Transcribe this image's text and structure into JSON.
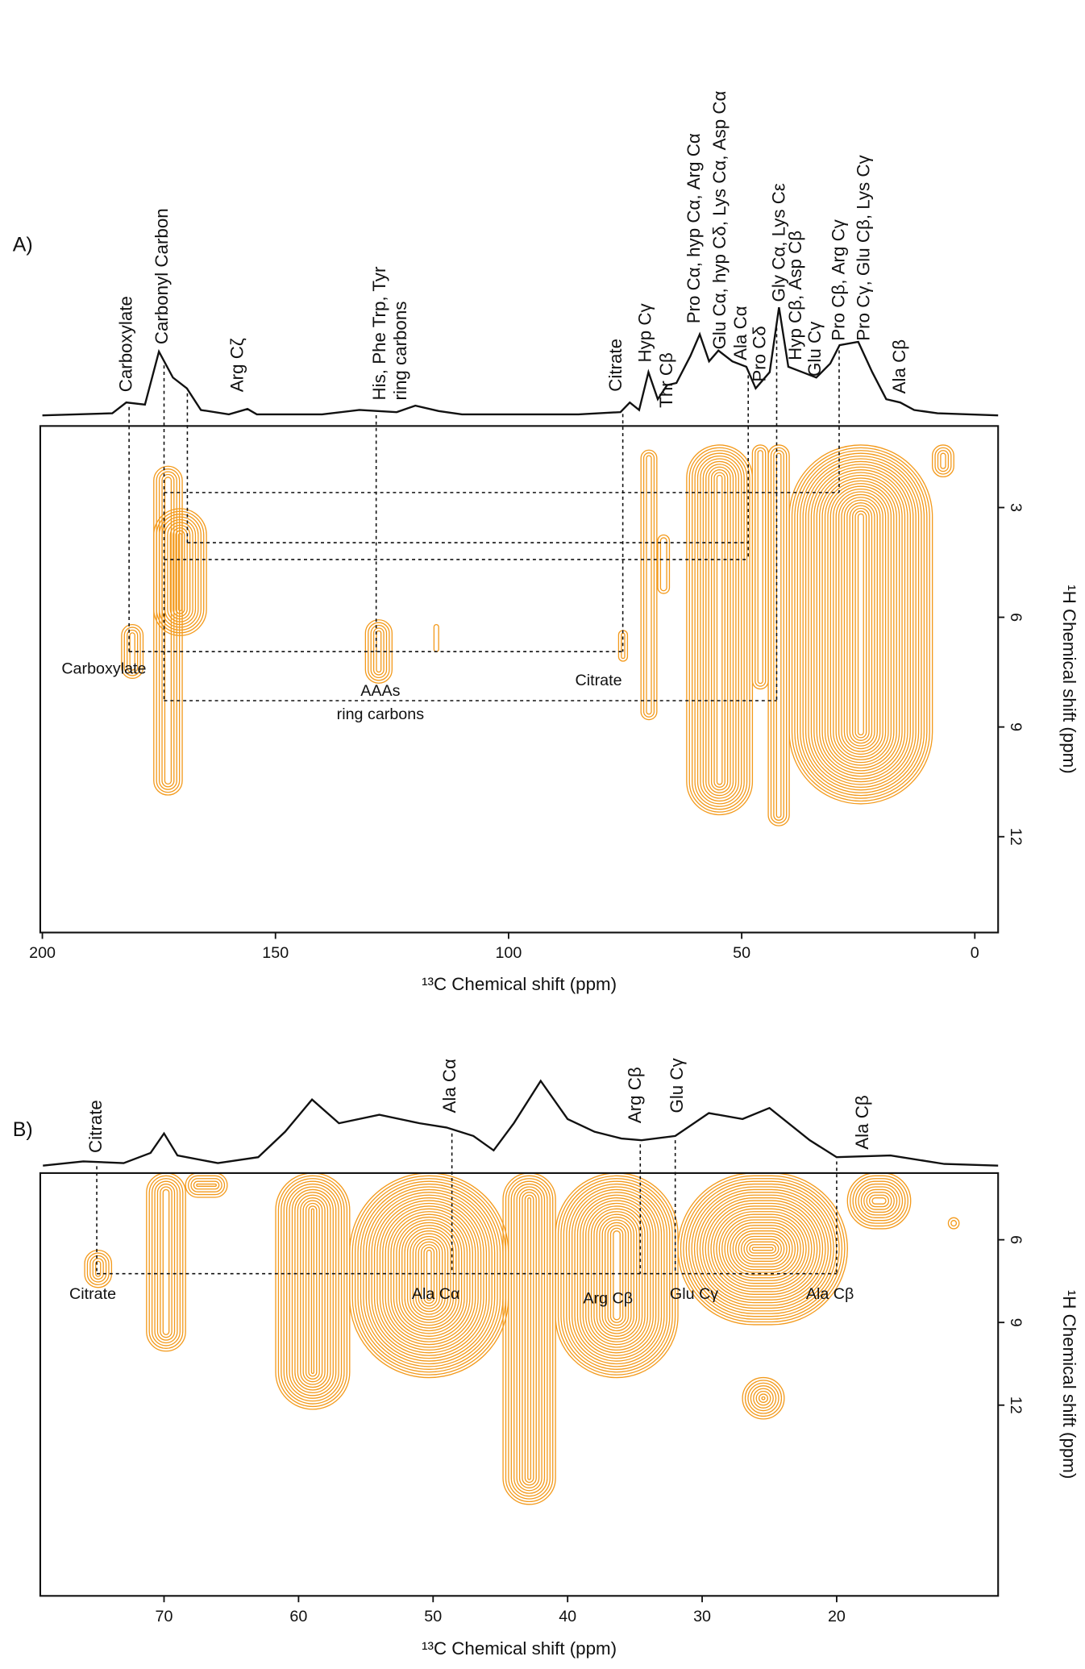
{
  "chart_data": [
    {
      "type": "contour",
      "label": "A)",
      "x_label": "¹³C Chemical shift (ppm)",
      "y_label": "¹H Chemical shift (ppm)",
      "color": "#f39a1c",
      "xlim": [
        200.45,
        -5
      ],
      "ylim": [
        0.77,
        14.62
      ],
      "xticks": [
        200,
        150,
        100,
        50,
        0
      ],
      "yticks": [
        3,
        6,
        9,
        12
      ],
      "spectrum": {
        "x": [
          200,
          185,
          182,
          178,
          175,
          172,
          169,
          166,
          160,
          156,
          154,
          140,
          132,
          128,
          124,
          120,
          115,
          110,
          95,
          85,
          76,
          74,
          72,
          70,
          68,
          66,
          64,
          61,
          59,
          57,
          55,
          52,
          49,
          47,
          44,
          42,
          40,
          37,
          34,
          31,
          29,
          25,
          22,
          19,
          16,
          13,
          8,
          -5
        ],
        "values": [
          0,
          2,
          12,
          10,
          59,
          35,
          25,
          5,
          1,
          6,
          1,
          1,
          5,
          4,
          3,
          9,
          4,
          1,
          1,
          1,
          3,
          12,
          5,
          40,
          15,
          28,
          30,
          55,
          75,
          50,
          60,
          50,
          45,
          25,
          40,
          100,
          45,
          40,
          35,
          48,
          65,
          68,
          40,
          15,
          12,
          5,
          2,
          0
        ]
      },
      "annotations": [
        {
          "text": "Carboxylate",
          "x": 181.8,
          "y": 21.6
        },
        {
          "text": "Carbonyl Carbon",
          "x": 174.1,
          "y": 65.7
        },
        {
          "text": "Arg Cζ",
          "x": 158,
          "y": 21.6
        },
        {
          "lines": [
            "His, Phe Trp, Tyr",
            "ring carbons"
          ],
          "x": 125.2,
          "y": 14
        },
        {
          "text": "Citrate",
          "x": 76.8,
          "y": 22
        },
        {
          "text": "Hyp Cγ",
          "x": 70.5,
          "y": 49
        },
        {
          "text": "Thr Cβ",
          "x": 65.9,
          "y": 7
        },
        {
          "text": "Pro Cα, hyp Cα, Arg Cα",
          "x": 60,
          "y": 85
        },
        {
          "text": "Glu Cα, hyp Cδ, Lys Cα, Asp Cα",
          "x": 54.5,
          "y": 61
        },
        {
          "text": "Ala Cα",
          "x": 50,
          "y": 51
        },
        {
          "text": "Pro Cδ",
          "x": 45.9,
          "y": 31
        },
        {
          "text": "Gly Cα, Lys Cε",
          "x": 41.8,
          "y": 105
        },
        {
          "text": "Hyp Cβ, Asp Cβ",
          "x": 38.2,
          "y": 51
        },
        {
          "text": "Glu Cγ",
          "x": 34.1,
          "y": 36
        },
        {
          "text": "Pro Cβ, Arg Cγ",
          "x": 29,
          "y": 69
        },
        {
          "text": "Pro Cγ, Glu Cβ, Lys Cγ",
          "x": 23.6,
          "y": 69
        },
        {
          "text": "Ala Cβ",
          "x": 15.9,
          "y": 20
        }
      ],
      "inner_labels": [
        {
          "text": "Carboxylate",
          "x": 186.8,
          "y": 7.43
        },
        {
          "lines": [
            "AAAs",
            "ring carbons"
          ],
          "x": 127.5,
          "y": 8.35
        },
        {
          "text": "Citrate",
          "x": 80.7,
          "y": 7.75
        }
      ],
      "vertical_guides": [
        {
          "x": 181.4,
          "y": 6.94
        },
        {
          "x": 173.9,
          "y": 8.28
        },
        {
          "x": 168.9,
          "y": 3.96
        },
        {
          "x": 128.4,
          "y": 6.94
        },
        {
          "x": 75.5,
          "y": 6.94
        },
        {
          "x": 48.6,
          "y": 4.42
        },
        {
          "x": 42.5,
          "y": 8.28
        },
        {
          "x": 29.1,
          "y": 2.59
        }
      ],
      "horizontal_guides": [
        {
          "y": 2.59,
          "x": [
            173.9,
            29.1
          ]
        },
        {
          "y": 3.96,
          "x": [
            168.9,
            48.6
          ]
        },
        {
          "y": 4.42,
          "x": [
            173.9,
            48.6
          ]
        },
        {
          "y": 6.94,
          "x": [
            181.4,
            75.5
          ]
        },
        {
          "y": 8.28,
          "x": [
            173.9,
            42.5
          ]
        }
      ],
      "regions": [
        {
          "x": [
            176.1,
            170
          ],
          "y": [
            1.87,
            10.86
          ]
        },
        {
          "x": [
            176.1,
            164.8
          ],
          "y": [
            3.03,
            6.5
          ]
        },
        {
          "x": [
            183,
            178.4
          ],
          "y": [
            6.2,
            7.67
          ]
        },
        {
          "x": [
            130.7,
            125
          ],
          "y": [
            6.07,
            7.8
          ]
        },
        {
          "x": [
            116,
            115
          ],
          "y": [
            6.2,
            6.94
          ]
        },
        {
          "x": [
            76.4,
            74.5
          ],
          "y": [
            6.36,
            7.2
          ]
        },
        {
          "x": [
            71.6,
            68.2
          ],
          "y": [
            1.43,
            8.8
          ]
        },
        {
          "x": [
            68,
            65.5
          ],
          "y": [
            3.75,
            5.35
          ]
        },
        {
          "x": [
            61.8,
            47.7
          ],
          "y": [
            1.29,
            11.4
          ]
        },
        {
          "x": [
            47.7,
            44.3
          ],
          "y": [
            1.29,
            7.96
          ]
        },
        {
          "x": [
            44.3,
            39.8
          ],
          "y": [
            1.29,
            11.7
          ]
        },
        {
          "x": [
            39.8,
            9.1
          ],
          "y": [
            1.29,
            11.1
          ]
        },
        {
          "x": [
            9.1,
            4.5
          ],
          "y": [
            1.29,
            2.16
          ]
        }
      ]
    },
    {
      "type": "contour",
      "label": "B)",
      "x_label": "¹³C Chemical shift (ppm)",
      "y_label": "¹H Chemical shift (ppm)",
      "color": "#f39a1c",
      "xlim": [
        79.2,
        8
      ],
      "ylim": [
        3.58,
        18.92
      ],
      "xticks": [
        70,
        60,
        50,
        40,
        30,
        20
      ],
      "yticks": [
        6,
        9,
        12
      ],
      "spectrum": {
        "x": [
          79,
          76,
          73,
          71,
          70,
          69,
          66,
          63,
          61,
          59,
          57,
          54,
          51,
          49,
          47,
          45.5,
          44,
          42,
          40,
          38,
          36,
          34.5,
          32,
          29.5,
          27,
          25,
          22,
          20,
          16,
          12,
          8
        ],
        "values": [
          0,
          5,
          3,
          15,
          38,
          12,
          3,
          10,
          40,
          78,
          50,
          60,
          50,
          45,
          35,
          18,
          50,
          100,
          55,
          40,
          32,
          30,
          35,
          62,
          55,
          68,
          30,
          10,
          12,
          2,
          0
        ]
      },
      "annotations": [
        {
          "text": "Citrate",
          "x": 75,
          "y": 15
        },
        {
          "text": "Ala Cα",
          "x": 48.7,
          "y": 62
        },
        {
          "text": "Arg Cβ",
          "x": 34.9,
          "y": 50
        },
        {
          "text": "Glu Cγ",
          "x": 31.8,
          "y": 62
        },
        {
          "text": "Ala Cβ",
          "x": 18,
          "y": 19
        }
      ],
      "inner_labels": [
        {
          "text": "Citrate",
          "x": 75.3,
          "y": 8
        },
        {
          "text": "Ala Cα",
          "x": 49.8,
          "y": 8
        },
        {
          "text": "Arg Cβ",
          "x": 37,
          "y": 8.15
        },
        {
          "text": "Glu Cγ",
          "x": 30.6,
          "y": 8
        },
        {
          "text": "Ala Cβ",
          "x": 20.5,
          "y": 8
        }
      ],
      "vertical_guides": [
        {
          "x": 75,
          "y": 7.23
        },
        {
          "x": 48.6,
          "y": 7.23
        },
        {
          "x": 34.6,
          "y": 7.23
        },
        {
          "x": 32,
          "y": 7.23
        },
        {
          "x": 20,
          "y": 7.23
        }
      ],
      "horizontal_guides": [
        {
          "y": 7.23,
          "x": [
            75,
            20
          ]
        }
      ],
      "regions": [
        {
          "x": [
            75.9,
            73.9
          ],
          "y": [
            6.38,
            7.73
          ]
        },
        {
          "x": [
            71.3,
            68.4
          ],
          "y": [
            3.58,
            10.04
          ]
        },
        {
          "x": [
            68.4,
            65.3
          ],
          "y": [
            3.58,
            4.46
          ]
        },
        {
          "x": [
            61.7,
            56.2
          ],
          "y": [
            3.58,
            12.15
          ]
        },
        {
          "x": [
            56.2,
            44.4
          ],
          "y": [
            3.58,
            11
          ]
        },
        {
          "x": [
            44.8,
            40.9
          ],
          "y": [
            3.58,
            15.6
          ]
        },
        {
          "x": [
            40.9,
            31.8
          ],
          "y": [
            3.58,
            11
          ]
        },
        {
          "x": [
            31.8,
            19.2
          ],
          "y": [
            3.58,
            9.08
          ]
        },
        {
          "x": [
            19.2,
            14.5
          ],
          "y": [
            3.58,
            5.6
          ]
        },
        {
          "x": [
            27,
            23.9
          ],
          "y": [
            11,
            12.5
          ]
        },
        {
          "x": [
            11.7,
            10.9
          ],
          "y": [
            5.2,
            5.6
          ]
        }
      ]
    }
  ]
}
